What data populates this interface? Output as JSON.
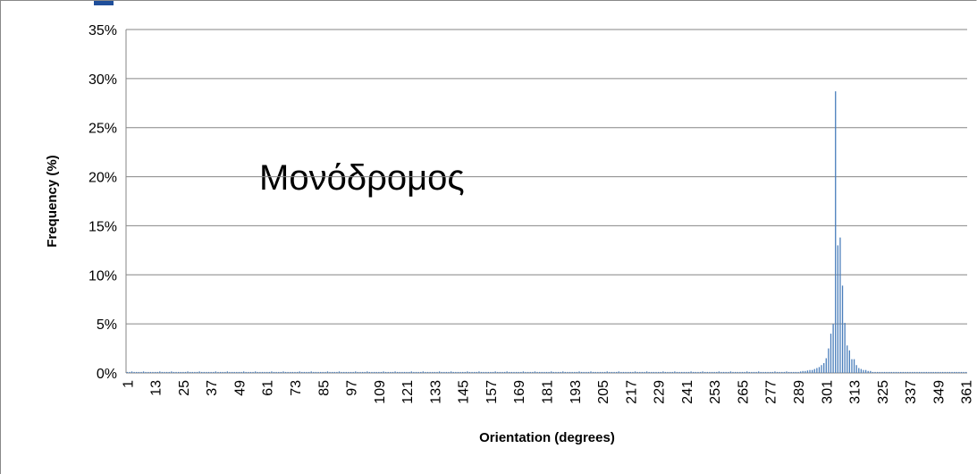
{
  "chart_data": {
    "type": "bar",
    "annotation": "Μονόδρομος",
    "x_label": "Orientation (degrees)",
    "y_label": "Frequency (%)",
    "color": "#4a7ebb",
    "ylim": [
      0,
      35
    ],
    "yticks": [
      {
        "value": 0,
        "label": "0%"
      },
      {
        "value": 5,
        "label": "5%"
      },
      {
        "value": 10,
        "label": "10%"
      },
      {
        "value": 15,
        "label": "15%"
      },
      {
        "value": 20,
        "label": "20%"
      },
      {
        "value": 25,
        "label": "25%"
      },
      {
        "value": 30,
        "label": "30%"
      },
      {
        "value": 35,
        "label": "35%"
      }
    ],
    "grid": true,
    "categories": [
      "1",
      null,
      null,
      null,
      null,
      null,
      null,
      null,
      null,
      null,
      null,
      null,
      "13",
      null,
      null,
      null,
      null,
      null,
      null,
      null,
      null,
      null,
      null,
      null,
      "25",
      null,
      null,
      null,
      null,
      null,
      null,
      null,
      null,
      null,
      null,
      null,
      "37",
      null,
      null,
      null,
      null,
      null,
      null,
      null,
      null,
      null,
      null,
      null,
      "49",
      null,
      null,
      null,
      null,
      null,
      null,
      null,
      null,
      null,
      null,
      null,
      "61",
      null,
      null,
      null,
      null,
      null,
      null,
      null,
      null,
      null,
      null,
      null,
      "73",
      null,
      null,
      null,
      null,
      null,
      null,
      null,
      null,
      null,
      null,
      null,
      "85",
      null,
      null,
      null,
      null,
      null,
      null,
      null,
      null,
      null,
      null,
      null,
      "97",
      null,
      null,
      null,
      null,
      null,
      null,
      null,
      null,
      null,
      null,
      null,
      "109",
      null,
      null,
      null,
      null,
      null,
      null,
      null,
      null,
      null,
      null,
      null,
      "121",
      null,
      null,
      null,
      null,
      null,
      null,
      null,
      null,
      null,
      null,
      null,
      "133",
      null,
      null,
      null,
      null,
      null,
      null,
      null,
      null,
      null,
      null,
      null,
      "145",
      null,
      null,
      null,
      null,
      null,
      null,
      null,
      null,
      null,
      null,
      null,
      "157",
      null,
      null,
      null,
      null,
      null,
      null,
      null,
      null,
      null,
      null,
      null,
      "169",
      null,
      null,
      null,
      null,
      null,
      null,
      null,
      null,
      null,
      null,
      null,
      "181",
      null,
      null,
      null,
      null,
      null,
      null,
      null,
      null,
      null,
      null,
      null,
      "193",
      null,
      null,
      null,
      null,
      null,
      null,
      null,
      null,
      null,
      null,
      null,
      "205",
      null,
      null,
      null,
      null,
      null,
      null,
      null,
      null,
      null,
      null,
      null,
      "217",
      null,
      null,
      null,
      null,
      null,
      null,
      null,
      null,
      null,
      null,
      null,
      "229",
      null,
      null,
      null,
      null,
      null,
      null,
      null,
      null,
      null,
      null,
      null,
      "241",
      null,
      null,
      null,
      null,
      null,
      null,
      null,
      null,
      null,
      null,
      null,
      "253",
      null,
      null,
      null,
      null,
      null,
      null,
      null,
      null,
      null,
      null,
      null,
      "265",
      null,
      null,
      null,
      null,
      null,
      null,
      null,
      null,
      null,
      null,
      null,
      "277",
      null,
      null,
      null,
      null,
      null,
      null,
      null,
      null,
      null,
      null,
      null,
      "289",
      null,
      null,
      null,
      null,
      null,
      null,
      null,
      null,
      null,
      null,
      null,
      "301",
      null,
      null,
      null,
      null,
      null,
      null,
      null,
      null,
      null,
      null,
      null,
      "313",
      null,
      null,
      null,
      null,
      null,
      null,
      null,
      null,
      null,
      null,
      null,
      "325",
      null,
      null,
      null,
      null,
      null,
      null,
      null,
      null,
      null,
      null,
      null,
      "337",
      null,
      null,
      null,
      null,
      null,
      null,
      null,
      null,
      null,
      null,
      null,
      "349",
      null,
      null,
      null,
      null,
      null,
      null,
      null,
      null,
      null,
      null,
      null,
      "361"
    ],
    "values": [
      0.1,
      0.1,
      0.15,
      0.1,
      0.1,
      0.1,
      0.1,
      0.15,
      0.1,
      0.1,
      0.1,
      0.1,
      0.1,
      0.1,
      0.15,
      0.1,
      0.1,
      0.1,
      0.1,
      0.15,
      0.1,
      0.1,
      0.1,
      0.1,
      0.1,
      0.1,
      0.15,
      0.1,
      0.1,
      0.1,
      0.1,
      0.15,
      0.1,
      0.1,
      0.1,
      0.1,
      0.1,
      0.1,
      0.15,
      0.1,
      0.1,
      0.1,
      0.1,
      0.15,
      0.1,
      0.1,
      0.1,
      0.1,
      0.1,
      0.1,
      0.15,
      0.1,
      0.1,
      0.1,
      0.1,
      0.15,
      0.1,
      0.1,
      0.1,
      0.1,
      0.1,
      0.1,
      0.15,
      0.1,
      0.1,
      0.1,
      0.1,
      0.15,
      0.1,
      0.1,
      0.1,
      0.1,
      0.1,
      0.1,
      0.15,
      0.1,
      0.1,
      0.1,
      0.1,
      0.15,
      0.1,
      0.1,
      0.1,
      0.1,
      0.1,
      0.1,
      0.15,
      0.1,
      0.1,
      0.1,
      0.1,
      0.15,
      0.1,
      0.1,
      0.1,
      0.1,
      0.1,
      0.1,
      0.15,
      0.1,
      0.1,
      0.1,
      0.1,
      0.15,
      0.1,
      0.1,
      0.1,
      0.1,
      0.1,
      0.1,
      0.15,
      0.1,
      0.1,
      0.1,
      0.1,
      0.15,
      0.1,
      0.1,
      0.1,
      0.1,
      0.1,
      0.1,
      0.15,
      0.1,
      0.1,
      0.1,
      0.1,
      0.15,
      0.1,
      0.1,
      0.1,
      0.1,
      0.1,
      0.1,
      0.15,
      0.1,
      0.1,
      0.1,
      0.1,
      0.15,
      0.1,
      0.1,
      0.1,
      0.1,
      0.1,
      0.1,
      0.15,
      0.1,
      0.1,
      0.1,
      0.1,
      0.15,
      0.1,
      0.1,
      0.1,
      0.1,
      0.1,
      0.1,
      0.15,
      0.1,
      0.1,
      0.1,
      0.1,
      0.15,
      0.1,
      0.1,
      0.1,
      0.1,
      0.1,
      0.1,
      0.15,
      0.1,
      0.1,
      0.1,
      0.1,
      0.15,
      0.1,
      0.1,
      0.1,
      0.1,
      0.1,
      0.1,
      0.15,
      0.1,
      0.1,
      0.1,
      0.1,
      0.15,
      0.1,
      0.1,
      0.1,
      0.1,
      0.1,
      0.1,
      0.15,
      0.1,
      0.1,
      0.1,
      0.1,
      0.15,
      0.1,
      0.1,
      0.1,
      0.1,
      0.1,
      0.1,
      0.15,
      0.1,
      0.1,
      0.1,
      0.1,
      0.15,
      0.1,
      0.1,
      0.1,
      0.1,
      0.1,
      0.1,
      0.15,
      0.1,
      0.1,
      0.1,
      0.1,
      0.15,
      0.1,
      0.1,
      0.1,
      0.1,
      0.1,
      0.1,
      0.15,
      0.1,
      0.1,
      0.1,
      0.1,
      0.15,
      0.1,
      0.1,
      0.1,
      0.1,
      0.1,
      0.1,
      0.15,
      0.1,
      0.1,
      0.1,
      0.1,
      0.15,
      0.1,
      0.1,
      0.1,
      0.1,
      0.1,
      0.1,
      0.15,
      0.1,
      0.1,
      0.1,
      0.1,
      0.15,
      0.1,
      0.1,
      0.1,
      0.1,
      0.1,
      0.1,
      0.15,
      0.1,
      0.1,
      0.1,
      0.1,
      0.15,
      0.1,
      0.1,
      0.1,
      0.1,
      0.1,
      0.1,
      0.15,
      0.1,
      0.1,
      0.1,
      0.1,
      0.15,
      0.1,
      0.1,
      0.1,
      0.1,
      0.1,
      0.15,
      0.2,
      0.2,
      0.25,
      0.3,
      0.3,
      0.4,
      0.5,
      0.6,
      0.8,
      1,
      1.5,
      2.5,
      4,
      5,
      28.7,
      13,
      13.8,
      8.9,
      5.1,
      2.8,
      2.3,
      1.4,
      1.4,
      0.8,
      0.5,
      0.4,
      0.3,
      0.3,
      0.2,
      0.2,
      0.1,
      0.1,
      0.1,
      0.1,
      0.1,
      0.1,
      0.1,
      0.1,
      0.1,
      0.1,
      0.1,
      0.1,
      0.1,
      0.1,
      0.1,
      0.1,
      0.1,
      0.1,
      0.1,
      0.1,
      0.1,
      0.1,
      0.1,
      0.1,
      0.1,
      0.1,
      0.1,
      0.1,
      0.1,
      0.1,
      0.1,
      0.1,
      0.1,
      0.1,
      0.1,
      0.1,
      0.1,
      0.1,
      0.1,
      0.1,
      0.1
    ]
  }
}
